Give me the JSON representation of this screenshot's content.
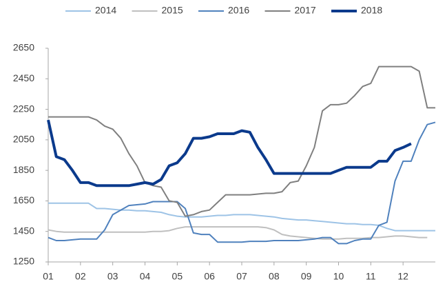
{
  "chart_data": {
    "type": "line",
    "x": [
      1,
      1.25,
      1.5,
      1.75,
      2,
      2.25,
      2.5,
      2.75,
      3,
      3.25,
      3.5,
      3.75,
      4,
      4.25,
      4.5,
      4.75,
      5,
      5.25,
      5.5,
      5.75,
      6,
      6.25,
      6.5,
      6.75,
      7,
      7.25,
      7.5,
      7.75,
      8,
      8.25,
      8.5,
      8.75,
      9,
      9.25,
      9.5,
      9.75,
      10,
      10.25,
      10.5,
      10.75,
      11,
      11.25,
      11.5,
      11.75,
      12,
      12.25,
      12.5,
      12.75,
      13
    ],
    "series": [
      {
        "name": "2014",
        "color": "#9dc3e6",
        "line_width": 2,
        "values": [
          1635,
          1635,
          1635,
          1635,
          1635,
          1635,
          1600,
          1600,
          1595,
          1590,
          1590,
          1585,
          1585,
          1580,
          1575,
          1560,
          1550,
          1545,
          1545,
          1545,
          1550,
          1555,
          1555,
          1560,
          1560,
          1560,
          1555,
          1550,
          1545,
          1535,
          1530,
          1525,
          1525,
          1520,
          1515,
          1510,
          1505,
          1500,
          1500,
          1495,
          1495,
          1490,
          1470,
          1455,
          1455,
          1455,
          1455,
          1455,
          1455
        ]
      },
      {
        "name": "2015",
        "color": "#bfbfbf",
        "line_width": 2,
        "values": [
          1460,
          1450,
          1445,
          1445,
          1445,
          1445,
          1445,
          1445,
          1445,
          1445,
          1445,
          1445,
          1445,
          1450,
          1450,
          1455,
          1470,
          1480,
          1480,
          1480,
          1480,
          1480,
          1480,
          1480,
          1480,
          1480,
          1480,
          1475,
          1460,
          1430,
          1420,
          1415,
          1410,
          1405,
          1400,
          1400,
          1400,
          1405,
          1405,
          1405,
          1410,
          1410,
          1415,
          1420,
          1420,
          1415,
          1410,
          1410,
          null
        ]
      },
      {
        "name": "2016",
        "color": "#4f81bd",
        "line_width": 2,
        "values": [
          1410,
          1390,
          1390,
          1395,
          1400,
          1400,
          1400,
          1460,
          1560,
          1590,
          1620,
          1625,
          1630,
          1645,
          1645,
          1645,
          1645,
          1600,
          1440,
          1430,
          1430,
          1380,
          1380,
          1380,
          1380,
          1385,
          1385,
          1385,
          1390,
          1390,
          1390,
          1390,
          1395,
          1400,
          1410,
          1410,
          1370,
          1370,
          1390,
          1400,
          1400,
          1490,
          1510,
          1780,
          1910,
          1910,
          2050,
          2150,
          2165
        ]
      },
      {
        "name": "2017",
        "color": "#7f7f7f",
        "line_width": 2,
        "values": [
          2200,
          2200,
          2200,
          2200,
          2200,
          2200,
          2180,
          2140,
          2120,
          2060,
          1960,
          1880,
          1770,
          1750,
          1740,
          1650,
          1640,
          1550,
          1560,
          1580,
          1590,
          1640,
          1690,
          1690,
          1690,
          1690,
          1695,
          1700,
          1700,
          1710,
          1770,
          1780,
          1880,
          2000,
          2240,
          2280,
          2280,
          2290,
          2340,
          2400,
          2420,
          2530,
          2530,
          2530,
          2530,
          2530,
          2500,
          2260,
          2260
        ]
      },
      {
        "name": "2018",
        "color": "#0b3a8c",
        "line_width": 4,
        "values": [
          2180,
          1940,
          1920,
          1850,
          1770,
          1770,
          1750,
          1750,
          1750,
          1750,
          1750,
          1760,
          1770,
          1760,
          1790,
          1880,
          1900,
          1960,
          2060,
          2060,
          2070,
          2090,
          2090,
          2090,
          2110,
          2100,
          2000,
          1920,
          1830,
          1830,
          1830,
          1830,
          1830,
          1830,
          1830,
          1830,
          1850,
          1870,
          1870,
          1870,
          1870,
          1910,
          1910,
          1980,
          2000,
          2025,
          null,
          null,
          null
        ]
      }
    ],
    "xlim": [
      1,
      13
    ],
    "xticks": [
      {
        "value": 1,
        "label": "01"
      },
      {
        "value": 2,
        "label": "02"
      },
      {
        "value": 3,
        "label": "03"
      },
      {
        "value": 4,
        "label": "04"
      },
      {
        "value": 5,
        "label": "05"
      },
      {
        "value": 6,
        "label": "06"
      },
      {
        "value": 7,
        "label": "07"
      },
      {
        "value": 8,
        "label": "08"
      },
      {
        "value": 9,
        "label": "09"
      },
      {
        "value": 10,
        "label": "10"
      },
      {
        "value": 11,
        "label": "11"
      },
      {
        "value": 12,
        "label": "12"
      }
    ],
    "ylim": [
      1250,
      2650
    ],
    "yticks": [
      1250,
      1450,
      1650,
      1850,
      2050,
      2250,
      2450,
      2650
    ],
    "grid": false,
    "legend": "top"
  }
}
